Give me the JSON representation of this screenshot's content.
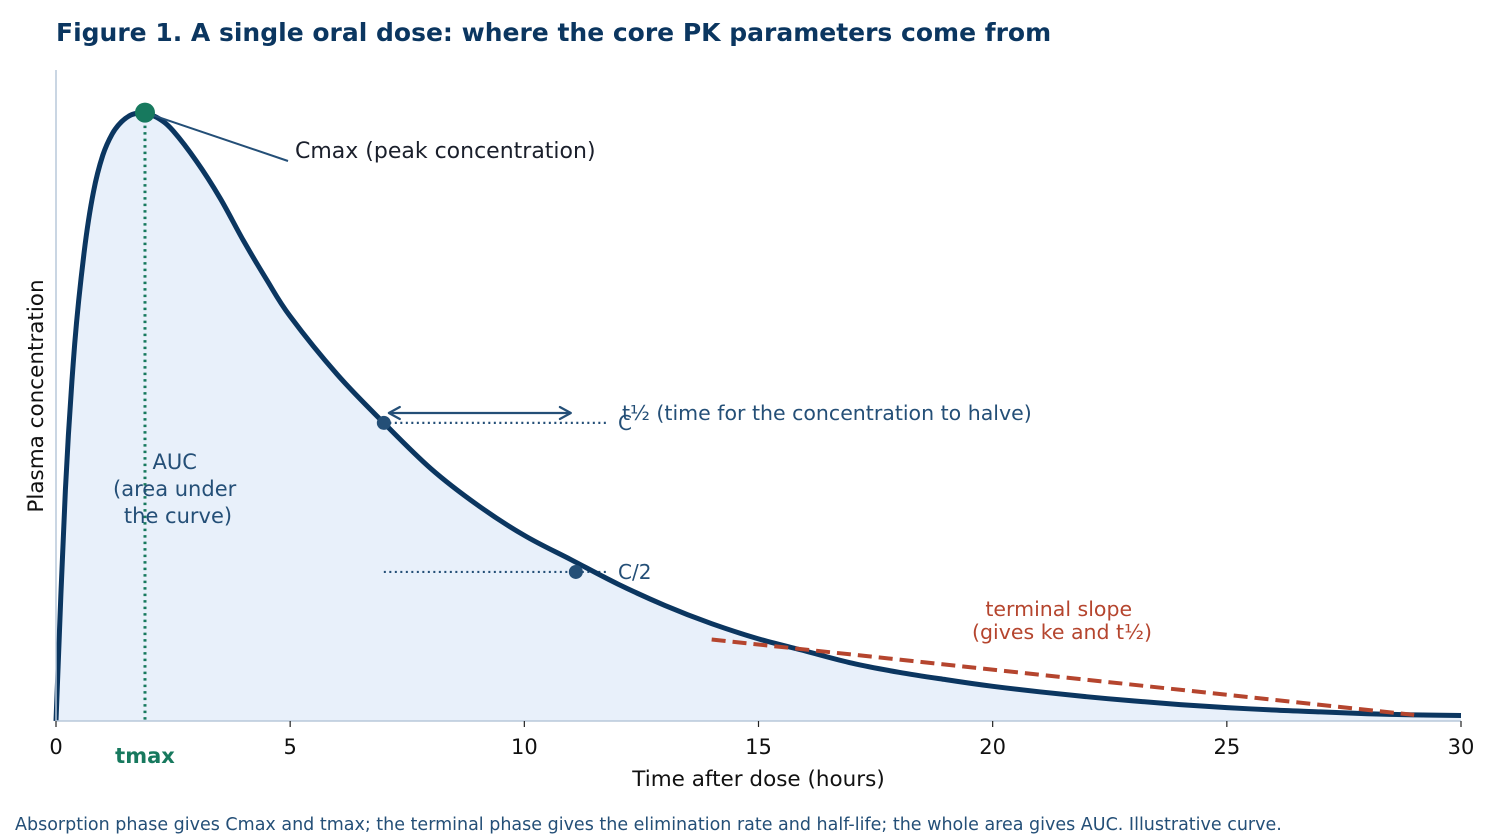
{
  "title": "Figure 1. A single oral dose: where the core PK parameters come from",
  "caption": "Absorption phase gives Cmax and tmax; the terminal phase gives the elimination rate and half-life; the whole area gives AUC. Illustrative curve.",
  "colors": {
    "curve": "#0b3660",
    "fill": "#e8f0fa",
    "tmax": "#17795e",
    "halflife": "#244f77",
    "terminal": "#b5452e",
    "axis": "#b8c8da"
  },
  "chart_data": {
    "type": "area",
    "xlabel": "Time after dose (hours)",
    "ylabel": "Plasma concentration",
    "xlim": [
      0,
      30
    ],
    "ylim": [
      0,
      1.07
    ],
    "x_ticks": [
      "0",
      "5",
      "10",
      "15",
      "20",
      "25",
      "30"
    ],
    "grid": false,
    "legend": "none",
    "curve": {
      "x": [
        0,
        0.2,
        0.4,
        0.6,
        0.8,
        1.0,
        1.2,
        1.4,
        1.6,
        1.8,
        1.9,
        2.2,
        2.5,
        3,
        3.5,
        4,
        4.5,
        5,
        6,
        7,
        8,
        9,
        10,
        11,
        12,
        13,
        14,
        15,
        16,
        17,
        18,
        19,
        20,
        21,
        22,
        23,
        24,
        25,
        26,
        27,
        28,
        29,
        30
      ],
      "y": [
        0,
        0.38,
        0.62,
        0.77,
        0.87,
        0.93,
        0.965,
        0.985,
        0.996,
        1.0,
        1.0,
        0.99,
        0.97,
        0.92,
        0.86,
        0.79,
        0.725,
        0.665,
        0.57,
        0.49,
        0.415,
        0.355,
        0.305,
        0.265,
        0.225,
        0.19,
        0.16,
        0.135,
        0.115,
        0.095,
        0.08,
        0.068,
        0.057,
        0.048,
        0.04,
        0.033,
        0.027,
        0.022,
        0.018,
        0.015,
        0.012,
        0.01,
        0.009
      ]
    },
    "annotations": {
      "cmax": {
        "x": 1.9,
        "y": 1.0,
        "label": "Cmax  (peak concentration)"
      },
      "tmax": {
        "x": 1.9,
        "label": "tmax"
      },
      "auc": {
        "lines": [
          "AUC",
          "(area under",
          "the curve)"
        ]
      },
      "half_life": {
        "x1": 7.0,
        "y1": 0.49,
        "x2": 11.1,
        "y2": 0.245,
        "label": "t½  (time for the concentration to halve)",
        "c_label": "C",
        "c2_label": "C/2"
      },
      "terminal_slope": {
        "x": [
          14,
          29
        ],
        "y": [
          0.134,
          0.01
        ],
        "lines": [
          "terminal slope",
          "(gives ke and t½)"
        ]
      }
    }
  }
}
